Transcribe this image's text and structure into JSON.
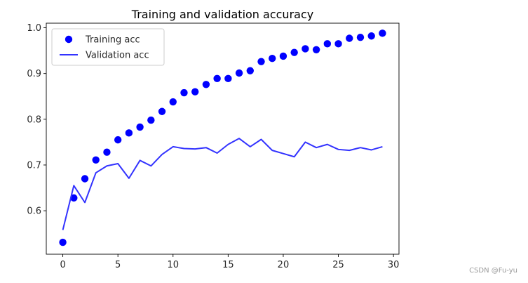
{
  "chart_data": {
    "type": "scatter",
    "title": "Training and validation accuracy",
    "xlabel": "",
    "ylabel": "",
    "xlim": [
      -1.5,
      30.5
    ],
    "ylim": [
      0.505,
      1.01
    ],
    "xticks": [
      0,
      5,
      10,
      15,
      20,
      25,
      30
    ],
    "yticks": [
      0.6,
      0.7,
      0.8,
      0.9,
      1.0
    ],
    "grid": false,
    "legend_position": "upper-left",
    "x": [
      0,
      1,
      2,
      3,
      4,
      5,
      6,
      7,
      8,
      9,
      10,
      11,
      12,
      13,
      14,
      15,
      16,
      17,
      18,
      19,
      20,
      21,
      22,
      23,
      24,
      25,
      26,
      27,
      28,
      29
    ],
    "series": [
      {
        "name": "Training acc",
        "style": "dots",
        "color": "#0000ff",
        "values": [
          0.531,
          0.628,
          0.67,
          0.711,
          0.728,
          0.755,
          0.77,
          0.783,
          0.798,
          0.817,
          0.838,
          0.858,
          0.86,
          0.876,
          0.889,
          0.889,
          0.901,
          0.906,
          0.926,
          0.933,
          0.938,
          0.946,
          0.954,
          0.952,
          0.965,
          0.965,
          0.977,
          0.979,
          0.982,
          0.988
        ]
      },
      {
        "name": "Validation acc",
        "style": "line",
        "color": "#3333ff",
        "values": [
          0.558,
          0.655,
          0.618,
          0.683,
          0.698,
          0.703,
          0.671,
          0.71,
          0.698,
          0.723,
          0.74,
          0.736,
          0.735,
          0.738,
          0.726,
          0.745,
          0.758,
          0.74,
          0.756,
          0.732,
          0.725,
          0.718,
          0.75,
          0.738,
          0.745,
          0.734,
          0.732,
          0.738,
          0.733,
          0.74
        ]
      }
    ]
  },
  "watermark": "CSDN @Fu-yu"
}
